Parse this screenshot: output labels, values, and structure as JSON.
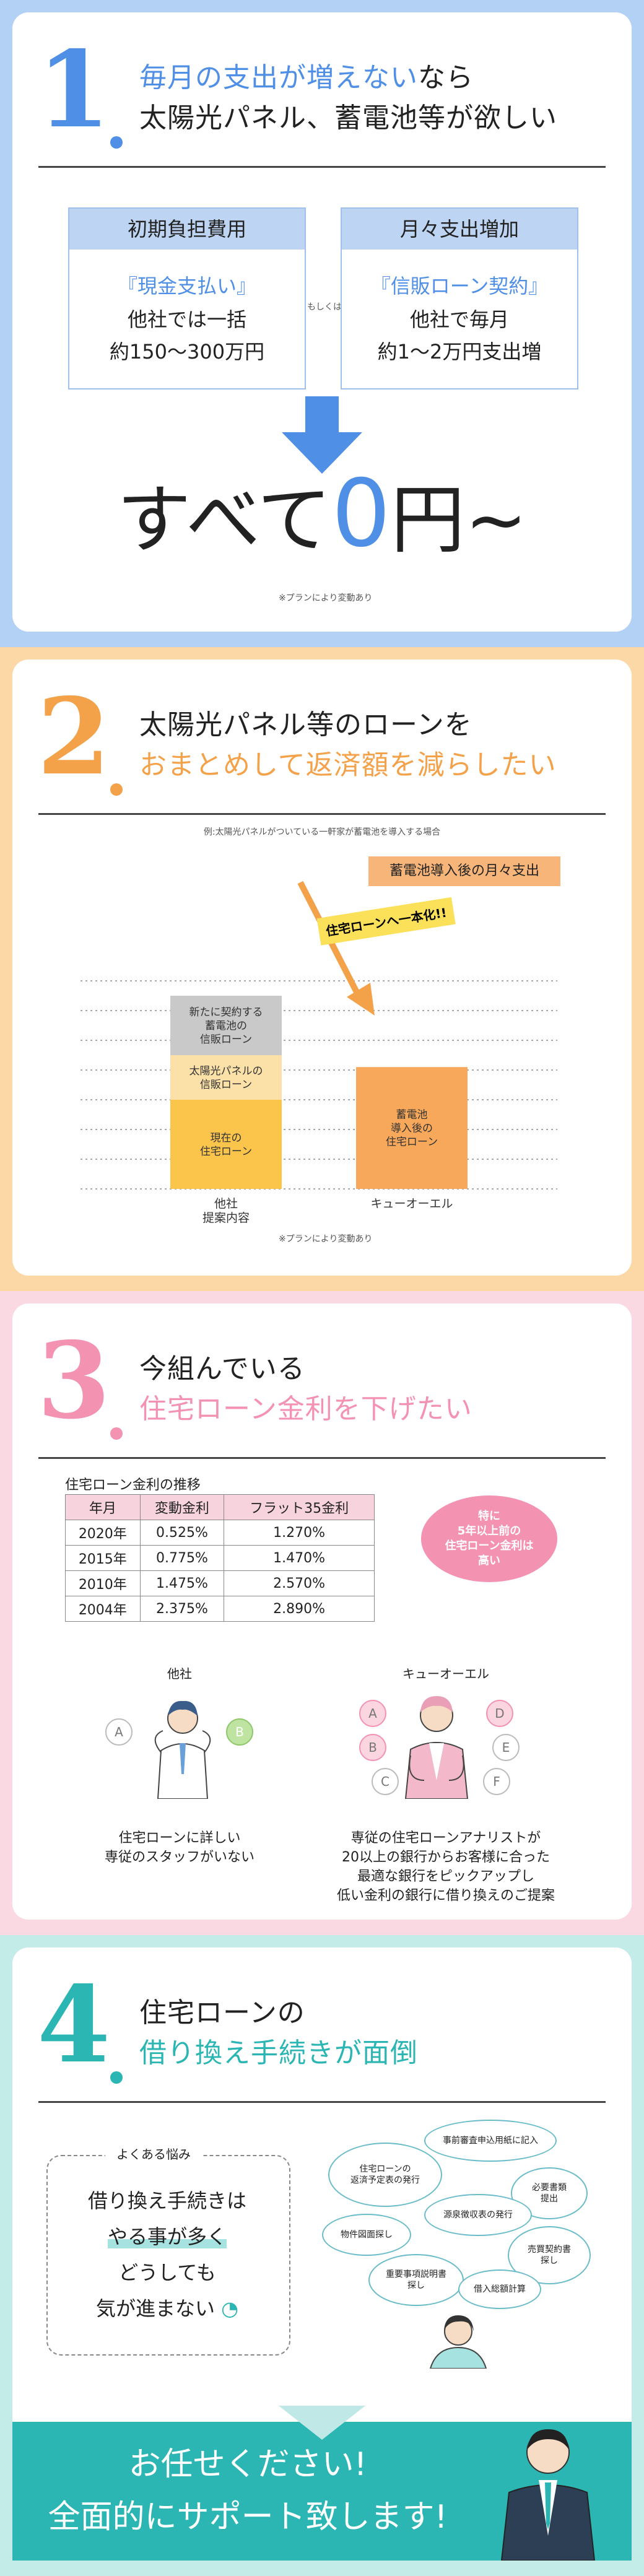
{
  "colors": {
    "blue": "#4f8fe6",
    "orange": "#f4a24a",
    "pink": "#f392b1",
    "teal": "#2bb6b3"
  },
  "s1": {
    "number": "1",
    "title_line1_hl": "毎月の支出が増えない",
    "title_line1_rest": "なら",
    "title_line2": "太陽光パネル、蓄電池等が欲しい",
    "box_left": {
      "header": "初期負担費用",
      "line1": "『現金支払い』",
      "line2": "他社では一括",
      "line3": "約150〜300万円"
    },
    "or_label": "もしくは",
    "box_right": {
      "header": "月々支出増加",
      "line1": "『信販ローン契約』",
      "line2": "他社で毎月",
      "line3": "約1〜2万円支出増"
    },
    "result_a": "すべて",
    "result_zero": "0",
    "result_b": "円~",
    "note": "※プランにより変動あり"
  },
  "s2": {
    "number": "2",
    "title_line1": "太陽光パネル等のローンを",
    "title_line2": "おまとめして返済額を減らしたい",
    "chart_caption": "例:太陽光パネルがついている一軒家が蓄電池を導入する場合",
    "chart_tag": "蓄電池導入後の月々支出",
    "arrow_label": "住宅ローンへ一本化!!",
    "note": "※プランにより変動あり"
  },
  "chart_data": {
    "type": "bar",
    "categories": [
      "他社\n提案内容",
      "キューオーエル"
    ],
    "series": [
      {
        "name": "現在の\n住宅ローン",
        "values": [
          3,
          0
        ]
      },
      {
        "name": "太陽光パネルの\n信販ローン",
        "values": [
          1.5,
          0
        ]
      },
      {
        "name": "新たに契約する\n蓄電池の\n信販ローン",
        "values": [
          2,
          0
        ]
      },
      {
        "name": "蓄電池\n導入後の\n住宅ローン",
        "values": [
          0,
          4.1
        ]
      }
    ],
    "cat_labels": [
      "他社",
      "提案内容",
      "キューオーエル"
    ],
    "seg_labels": {
      "current": [
        "現在の",
        "住宅ローン"
      ],
      "solar": [
        "太陽光パネルの",
        "信販ローン"
      ],
      "battery": [
        "新たに契約する",
        "蓄電池の",
        "信販ローン"
      ],
      "after": [
        "蓄電池",
        "導入後の",
        "住宅ローン"
      ]
    },
    "colors": [
      "#fbc44a",
      "#fbe0a8",
      "#c9c9c9",
      "#f7a85a"
    ],
    "grid": true
  },
  "s3": {
    "number": "3",
    "title_line1": "今組んでいる",
    "title_line2": "住宅ローン金利を下げたい",
    "table_title": "住宅ローン金利の推移",
    "table_headers": [
      "年月",
      "変動金利",
      "フラット35金利"
    ],
    "table_rows": [
      [
        "2020年",
        "0.525%",
        "1.270%"
      ],
      [
        "2015年",
        "0.775%",
        "1.470%"
      ],
      [
        "2010年",
        "1.475%",
        "2.570%"
      ],
      [
        "2004年",
        "2.375%",
        "2.890%"
      ]
    ],
    "badge": [
      "特に",
      "5年以上前の",
      "住宅ローン金利は",
      "高い"
    ],
    "left_label": "他社",
    "right_label": "キューオーエル",
    "left_caption": [
      "住宅ローンに詳しい",
      "専従のスタッフがいない"
    ],
    "right_caption": [
      "専従の住宅ローンアナリストが",
      "20以上の銀行からお客様に合った",
      "最適な銀行をピックアップし",
      "低い金利の銀行に借り換えのご提案"
    ],
    "letters_left": [
      "A",
      "B"
    ],
    "letters_right": [
      "A",
      "B",
      "C",
      "D",
      "E",
      "F"
    ]
  },
  "s4": {
    "number": "4",
    "title_line1": "住宅ローンの",
    "title_line2": "借り換え手続きが面倒",
    "worry_label": "よくある悩み",
    "worry_lines": [
      "借り換え手続きは",
      "やる事が多く",
      "どうしても",
      "気が進まない"
    ],
    "bubbles": [
      "事前審査申込用紙に記入",
      "住宅ローンの\n返済予定表の発行",
      "必要書類\n提出",
      "源泉徴収表の発行",
      "物件図面探し",
      "売買契約書\n探し",
      "重要事項説明書\n探し",
      "借入総額計算"
    ],
    "banner_line1": "お任せください!",
    "banner_line2": "全面的にサポート致します!"
  }
}
